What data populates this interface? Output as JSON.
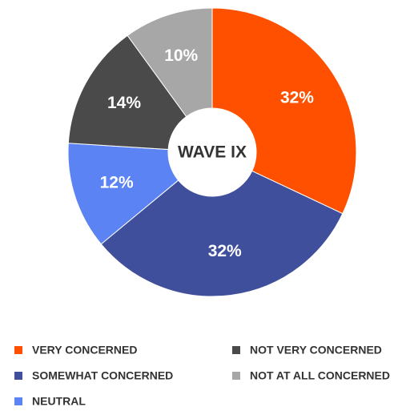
{
  "chart_data": {
    "type": "donut",
    "center_label": "WAVE IX",
    "categories": [
      "VERY CONCERNED",
      "SOMEWHAT CONCERNED",
      "NEUTRAL",
      "NOT VERY CONCERNED",
      "NOT AT ALL CONCERNED"
    ],
    "values": [
      32,
      32,
      12,
      14,
      10
    ],
    "value_labels": [
      "32%",
      "32%",
      "12%",
      "14%",
      "10%"
    ],
    "colors": [
      "#ff5000",
      "#3f4f9c",
      "#5b83f4",
      "#4a4a4a",
      "#a7a7a7"
    ],
    "legend": "bottom"
  }
}
